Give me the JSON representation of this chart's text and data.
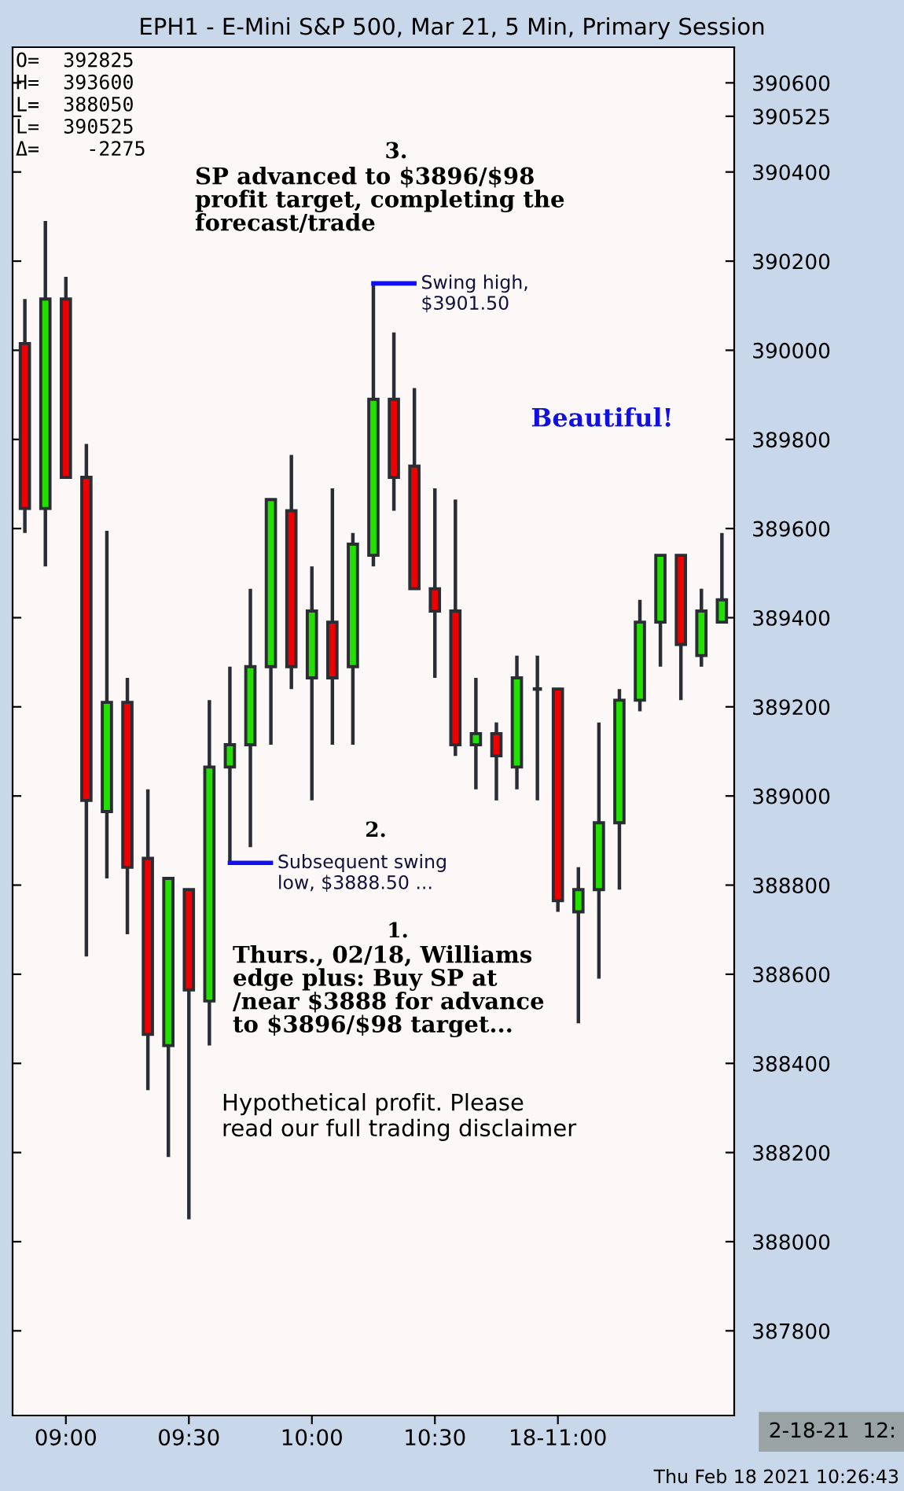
{
  "chart_data": {
    "type": "candlestick",
    "title": "EPH1 - E-Mini S&P 500, Mar 21, 5 Min, Primary Session",
    "x": [
      "2021-02-18T08:50",
      "2021-02-18T08:55",
      "2021-02-18T09:00",
      "2021-02-18T09:05",
      "2021-02-18T09:10",
      "2021-02-18T09:15",
      "2021-02-18T09:20",
      "2021-02-18T09:25",
      "2021-02-18T09:30",
      "2021-02-18T09:35",
      "2021-02-18T09:40",
      "2021-02-18T09:45",
      "2021-02-18T09:50",
      "2021-02-18T09:55",
      "2021-02-18T10:00",
      "2021-02-18T10:05",
      "2021-02-18T10:10",
      "2021-02-18T10:15",
      "2021-02-18T10:20",
      "2021-02-18T10:25",
      "2021-02-18T10:30",
      "2021-02-18T10:35",
      "2021-02-18T10:40",
      "2021-02-18T10:45",
      "2021-02-18T10:50",
      "2021-02-18T10:55",
      "2021-02-18T11:00",
      "2021-02-18T11:05",
      "2021-02-18T11:10",
      "2021-02-18T11:15",
      "2021-02-18T11:20",
      "2021-02-18T11:25",
      "2021-02-18T11:30",
      "2021-02-18T11:35",
      "2021-02-18T11:40"
    ],
    "ohlc": [
      [
        390015,
        390115,
        389590,
        389645
      ],
      [
        389645,
        390290,
        389515,
        390115
      ],
      [
        390115,
        390165,
        389715,
        389715
      ],
      [
        389715,
        389790,
        388640,
        388990
      ],
      [
        388965,
        389595,
        388815,
        389210
      ],
      [
        389210,
        389265,
        388690,
        388840
      ],
      [
        388860,
        389015,
        388340,
        388465
      ],
      [
        388440,
        388815,
        388190,
        388815
      ],
      [
        388790,
        388790,
        388050,
        388565
      ],
      [
        388540,
        389215,
        388440,
        389065
      ],
      [
        389065,
        389290,
        388850,
        389115
      ],
      [
        389115,
        389465,
        388885,
        389290
      ],
      [
        389290,
        389665,
        389115,
        389665
      ],
      [
        389640,
        389765,
        389240,
        389290
      ],
      [
        389265,
        389515,
        388990,
        389415
      ],
      [
        389390,
        389690,
        389115,
        389265
      ],
      [
        389290,
        389590,
        389115,
        389565
      ],
      [
        389540,
        390150,
        389515,
        389890
      ],
      [
        389890,
        390040,
        389640,
        389715
      ],
      [
        389740,
        389915,
        389465,
        389465
      ],
      [
        389465,
        389690,
        389265,
        389415
      ],
      [
        389415,
        389665,
        389090,
        389115
      ],
      [
        389115,
        389265,
        389015,
        389140
      ],
      [
        389140,
        389165,
        388990,
        389090
      ],
      [
        389065,
        389315,
        389015,
        389265
      ],
      [
        389240,
        389315,
        388990,
        389240
      ],
      [
        389240,
        389240,
        388740,
        388765
      ],
      [
        388740,
        388840,
        388490,
        388790
      ],
      [
        388790,
        389165,
        388590,
        388940
      ],
      [
        388940,
        389240,
        388790,
        389215
      ],
      [
        389215,
        389440,
        389190,
        389390
      ],
      [
        389390,
        389540,
        389290,
        389540
      ],
      [
        389540,
        389540,
        389215,
        389340
      ],
      [
        389315,
        389465,
        389290,
        389415
      ],
      [
        389390,
        389590,
        389390,
        389440
      ]
    ],
    "colors": [
      "#ee0000",
      "#22e000",
      "#ee0000",
      "#ee0000",
      "#22e000",
      "#ee0000",
      "#ee0000",
      "#22e000",
      "#ee0000",
      "#22e000",
      "#22e000",
      "#22e000",
      "#22e000",
      "#ee0000",
      "#22e000",
      "#ee0000",
      "#22e000",
      "#22e000",
      "#ee0000",
      "#ee0000",
      "#ee0000",
      "#ee0000",
      "#22e000",
      "#ee0000",
      "#22e000",
      "#2a2d33",
      "#ee0000",
      "#22e000",
      "#22e000",
      "#22e000",
      "#22e000",
      "#22e000",
      "#ee0000",
      "#22e000",
      "#22e000"
    ],
    "xlim": [
      "2021-02-18T08:47",
      "2021-02-18T11:43"
    ],
    "xticks": [
      {
        "value": "2021-02-18T09:00",
        "label": "09:00"
      },
      {
        "value": "2021-02-18T09:30",
        "label": "09:30"
      },
      {
        "value": "2021-02-18T10:00",
        "label": "10:00"
      },
      {
        "value": "2021-02-18T10:30",
        "label": "10:30"
      },
      {
        "value": "2021-02-18T11:00",
        "label": "18-11:00"
      }
    ],
    "ylim": [
      387610,
      390680
    ],
    "yticks": [
      387800,
      388000,
      388200,
      388400,
      388600,
      388800,
      389000,
      389200,
      389400,
      389600,
      389800,
      390000,
      390200,
      390400,
      390525,
      390600
    ],
    "grid": false,
    "annotations": [
      "O=  392825\nH=  393600\nL=  388050\nL=  390525\nΔ=    -2275",
      "3.",
      "SP advanced to $3896/$98\nprofit target, completing the\nforecast/trade",
      "Beautiful!",
      "2.",
      "1.",
      "Thurs., 02/18, Williams\nedge plus: Buy SP at\n/near $3888 for advance\nto $3896/$98 target...",
      "Hypothetical profit. Please\nread our full trading disclaimer",
      "2-18-21  12:",
      "Thu Feb 18 2021 10:26:43",
      {
        "text": "Swing high,\n$3901.50",
        "x": "2021-02-18T10:15",
        "y": 390150
      },
      {
        "text": "Subsequent swing\nlow, $3888.50 ...",
        "x": "2021-02-18T09:40",
        "y": 388850
      }
    ]
  }
}
